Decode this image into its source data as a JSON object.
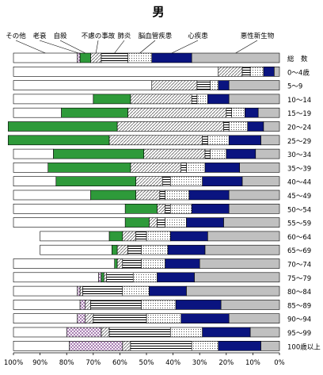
{
  "chart_data": {
    "type": "bar",
    "orientation": "horizontal-stacked-100",
    "title": "男",
    "categories": [
      "総　数",
      "0～4歳",
      "5～9",
      "10～14",
      "15～19",
      "20～24",
      "25～29",
      "30～34",
      "35～39",
      "40～44",
      "45～49",
      "50～54",
      "55～59",
      "60～64",
      "65～69",
      "70～74",
      "75～79",
      "80～84",
      "85～89",
      "90～94",
      "95～99",
      "100歳以上"
    ],
    "series": [
      {
        "name": "悪性新生物",
        "color": "#c0c0c0",
        "pattern": "solid",
        "values": [
          33,
          2,
          19,
          19,
          8,
          6,
          7,
          9,
          15,
          14,
          19,
          19,
          21,
          27,
          28,
          30,
          32,
          35,
          22,
          19,
          11,
          7
        ]
      },
      {
        "name": "心疾患",
        "color": "#0a1480",
        "pattern": "solid",
        "values": [
          15,
          4,
          4,
          8,
          5,
          6,
          12,
          11,
          13,
          15,
          15,
          14,
          14,
          14,
          14,
          13,
          14,
          14,
          17,
          18,
          18,
          16
        ]
      },
      {
        "name": "脳血管疾患",
        "color": "#ffffff",
        "pattern": "dots",
        "values": [
          9,
          5,
          3,
          4,
          5,
          7,
          8,
          6,
          7,
          12,
          9,
          8,
          8,
          9,
          10,
          9,
          9,
          10,
          13,
          13,
          12,
          10
        ]
      },
      {
        "name": "肺炎",
        "color": "#ffffff",
        "pattern": "hlines",
        "values": [
          10,
          3,
          5,
          2,
          2,
          2,
          2,
          2,
          2,
          3,
          2,
          2,
          3,
          4,
          5,
          7,
          10,
          15,
          19,
          20,
          23,
          23
        ]
      },
      {
        "name": "不慮の事故",
        "color": "#ffffff",
        "pattern": "diagonal",
        "values": [
          4,
          9,
          17,
          23,
          37,
          40,
          35,
          23,
          19,
          10,
          9,
          3,
          3,
          5,
          4,
          2,
          1,
          1,
          2,
          3,
          3,
          3
        ]
      },
      {
        "name": "自殺",
        "color": "#2e9a3a",
        "pattern": "solid",
        "values": [
          4,
          0,
          0,
          14,
          25,
          41,
          38,
          34,
          31,
          30,
          17,
          12,
          9,
          5,
          2,
          1,
          1,
          0,
          0,
          0,
          0,
          0
        ]
      },
      {
        "name": "老衰",
        "color": "#ffffff",
        "pattern": "crosshatch",
        "values": [
          1,
          0,
          0,
          0,
          0,
          0,
          0,
          0,
          0,
          0,
          0,
          0,
          0,
          0,
          0,
          0,
          1,
          1,
          2,
          3,
          13,
          20
        ]
      },
      {
        "name": "その他",
        "color": "#ffffff",
        "pattern": "solid",
        "values": [
          24,
          77,
          52,
          30,
          18,
          0,
          0,
          15,
          13,
          16,
          29,
          42,
          42,
          26,
          27,
          38,
          32,
          24,
          25,
          24,
          20,
          21
        ]
      }
    ],
    "xlim": [
      0,
      100
    ],
    "x_ticks": [
      "100%",
      "90%",
      "80%",
      "70%",
      "60%",
      "50%",
      "40%",
      "30%",
      "20%",
      "10%",
      "0%"
    ],
    "x_reversed": true,
    "legend": "callout-labels-top",
    "legend_labels": [
      "その他",
      "老衰",
      "自殺",
      "不慮の事故",
      "肺炎",
      "脳血管疾患",
      "心疾患",
      "悪性新生物"
    ],
    "grid": false
  }
}
